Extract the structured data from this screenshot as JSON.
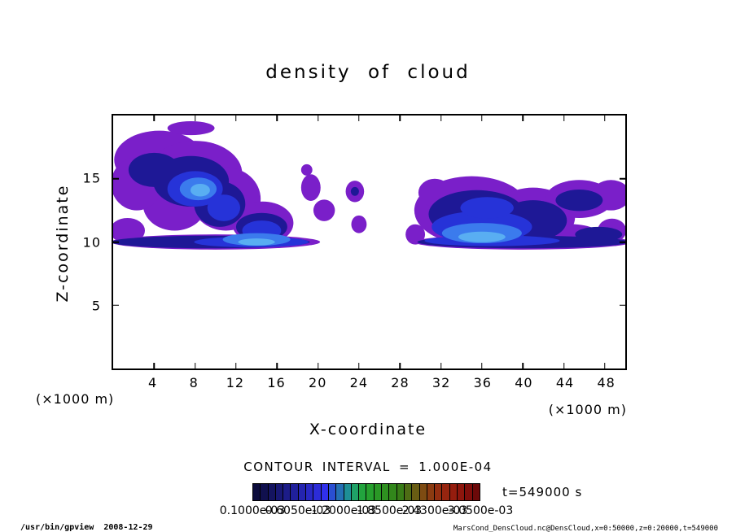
{
  "title": "density of cloud",
  "axes": {
    "x": {
      "label": "X-coordinate",
      "unit": "(×1000 m)",
      "range": [
        0,
        50
      ],
      "ticks": [
        4,
        8,
        12,
        16,
        20,
        24,
        28,
        32,
        36,
        40,
        44,
        48
      ]
    },
    "y": {
      "label": "Z-coordinate",
      "unit": "(×1000 m)",
      "range": [
        0,
        20
      ],
      "ticks": [
        5,
        10,
        15
      ]
    }
  },
  "contour_note": "CONTOUR INTERVAL = 1.000E-04",
  "time_label": "t=549000 s",
  "colorbar": {
    "colors": [
      "#0c0c3c",
      "#10104e",
      "#141460",
      "#181874",
      "#1c1c88",
      "#20209c",
      "#2424b0",
      "#2828c4",
      "#2c2cd8",
      "#3030ec",
      "#2a4fd2",
      "#2470b4",
      "#1e8f96",
      "#1fa268",
      "#22a43e",
      "#26a02e",
      "#2a9826",
      "#2e9020",
      "#32871b",
      "#387c17",
      "#4e6c15",
      "#685c13",
      "#7e4b12",
      "#8b3b11",
      "#932e10",
      "#97250f",
      "#951d0e",
      "#8d160d",
      "#7f0e0b",
      "#6c0909"
    ],
    "labels": [
      "0.1000e-03",
      "0.6050e-03",
      "1.2000e-03",
      "1.8500e-03",
      "2.4300e-03",
      "3.0500e-03"
    ]
  },
  "footer": {
    "left": "/usr/bin/gpview  2008-12-29",
    "right": "MarsCond_DensCloud.nc@DensCloud,x=0:50000,z=0:20000,t=549000"
  },
  "chart_data": {
    "type": "heatmap",
    "variant": "filled-contour",
    "title": "density of cloud",
    "xlabel": "X-coordinate",
    "ylabel": "Z-coordinate",
    "x_unit": "×1000 m",
    "y_unit": "×1000 m",
    "xlim": [
      0,
      50
    ],
    "ylim": [
      0,
      20
    ],
    "x_ticks": [
      4,
      8,
      12,
      16,
      20,
      24,
      28,
      32,
      36,
      40,
      44,
      48
    ],
    "y_ticks": [
      5,
      10,
      15
    ],
    "contour_interval": 0.0001,
    "levels_min": 0.0001,
    "levels_max": 0.00305,
    "time_seconds": 549000,
    "legend_position": "bottom",
    "grid": false,
    "regions": [
      {
        "name": "left-cloud",
        "x_range": [
          0,
          19
        ],
        "z_range": [
          9.5,
          18.7
        ],
        "core": {
          "x": 8.5,
          "z": 14.2
        },
        "approx_core_density": 0.001
      },
      {
        "name": "top-wisp",
        "x_range": [
          5.5,
          10
        ],
        "z_range": [
          18.5,
          19.4
        ],
        "approx_density": 0.00015
      },
      {
        "name": "mid-scattered-blobs",
        "x_range": [
          18.5,
          24.8
        ],
        "z_range": [
          10.8,
          16.0
        ],
        "approx_density": 0.00015
      },
      {
        "name": "right-cloud",
        "x_range": [
          29,
          50
        ],
        "z_range": [
          9.5,
          15.5
        ],
        "core": {
          "x": 36,
          "z": 10.6
        },
        "approx_core_density": 0.001
      },
      {
        "name": "base-layer-band-left",
        "x_range": [
          0,
          21
        ],
        "z_range": [
          9.5,
          10.5
        ],
        "approx_density": 0.0006
      },
      {
        "name": "base-layer-band-right",
        "x_range": [
          29,
          50
        ],
        "z_range": [
          9.5,
          10.5
        ],
        "approx_density": 0.0006
      }
    ]
  }
}
